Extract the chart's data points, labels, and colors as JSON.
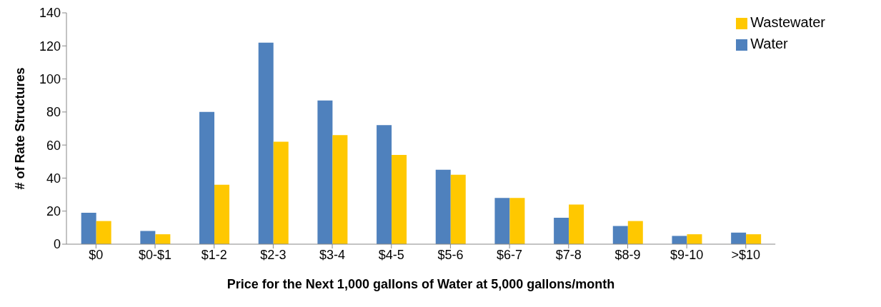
{
  "chart_data": {
    "type": "bar",
    "xlabel": "Price for the Next 1,000 gallons of Water at 5,000 gallons/month",
    "ylabel": "# of Rate Structures",
    "categories": [
      "$0",
      "$0-$1",
      "$1-2",
      "$2-3",
      "$3-4",
      "$4-5",
      "$5-6",
      "$6-7",
      "$7-8",
      "$8-9",
      "$9-10",
      ">$10"
    ],
    "series": [
      {
        "name": "Water",
        "color": "#4f81bd",
        "values": [
          19,
          8,
          80,
          122,
          87,
          72,
          45,
          28,
          16,
          11,
          5,
          7
        ]
      },
      {
        "name": "Wastewater",
        "color": "#ffc800",
        "values": [
          14,
          6,
          36,
          62,
          66,
          54,
          42,
          28,
          24,
          14,
          6,
          6
        ]
      }
    ],
    "ylim": [
      0,
      140
    ],
    "yticks": [
      0,
      20,
      40,
      60,
      80,
      100,
      120,
      140
    ],
    "grid": false,
    "legend": "top right"
  }
}
